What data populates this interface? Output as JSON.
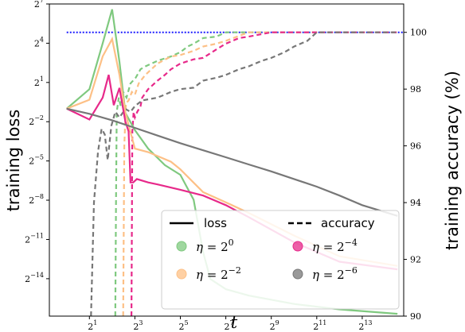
{
  "chart_data": {
    "type": "line",
    "xlabel": "t",
    "ylabel": "training loss",
    "y2label": "training accuracy (%)",
    "x_scale": "log2",
    "x_ticks": [
      2,
      8,
      32,
      128,
      512,
      2048,
      8192
    ],
    "x_tick_labels": [
      {
        "base": "2",
        "exp": "1"
      },
      {
        "base": "2",
        "exp": "3"
      },
      {
        "base": "2",
        "exp": "5"
      },
      {
        "base": "2",
        "exp": "7"
      },
      {
        "base": "2",
        "exp": "9"
      },
      {
        "base": "2",
        "exp": "11"
      },
      {
        "base": "2",
        "exp": "13"
      }
    ],
    "xlim": [
      0.59,
      29000
    ],
    "y_scale": "log2",
    "y_ticks": [
      6.1e-05,
      0.000488,
      0.00391,
      0.03125,
      0.25,
      2,
      16,
      128
    ],
    "y_tick_labels": [
      {
        "base": "2",
        "exp": "−14"
      },
      {
        "base": "2",
        "exp": "−11"
      },
      {
        "base": "2",
        "exp": "−8"
      },
      {
        "base": "2",
        "exp": "−5"
      },
      {
        "base": "2",
        "exp": "−2"
      },
      {
        "base": "2",
        "exp": "1"
      },
      {
        "base": "2",
        "exp": "4"
      },
      {
        "base": "2",
        "exp": "7"
      }
    ],
    "ylim": [
      8.4e-06,
      128
    ],
    "y2_ticks": [
      90,
      92,
      94,
      96,
      98,
      100
    ],
    "y2_tick_labels": [
      "90",
      "92",
      "94",
      "96",
      "98",
      "100"
    ],
    "y2lim": [
      90,
      101.0
    ],
    "reference_line": {
      "axis": "y2",
      "value": 100,
      "color": "#1a1aff",
      "style": "dotted"
    },
    "legend": {
      "placement": "lower-right",
      "style_entries": [
        {
          "label": "loss",
          "dash": "solid"
        },
        {
          "label": "accuracy",
          "dash": "dashed"
        }
      ],
      "series_entries": [
        {
          "symbol": "η",
          "eq": "= 2",
          "exp": "0"
        },
        {
          "symbol": "η",
          "eq": "= 2",
          "exp": "−4"
        },
        {
          "symbol": "η",
          "eq": "= 2",
          "exp": "−2"
        },
        {
          "symbol": "η",
          "eq": "= 2",
          "exp": "−6"
        }
      ]
    },
    "series": [
      {
        "name": "η = 2^0",
        "color": "#7fc97f",
        "loss": {
          "x": [
            1,
            2,
            3,
            4,
            5,
            6,
            8,
            12,
            20,
            32,
            48,
            64,
            80,
            128,
            256,
            1024,
            4096,
            24000
          ],
          "y": [
            0.5,
            1.4,
            16,
            96,
            6,
            0.4,
            0.16,
            0.06,
            0.025,
            0.015,
            0.004,
            0.00025,
            6e-05,
            3.5e-05,
            2.5e-05,
            1.6e-05,
            1.2e-05,
            9.5e-06
          ]
        },
        "accuracy": {
          "x": [
            4.4,
            4.5,
            4.6,
            4.9,
            5.2,
            5.6,
            6.2,
            7,
            8.2,
            9.5,
            11,
            16,
            24,
            32,
            40,
            48,
            64,
            96,
            128,
            256,
            1024,
            24000
          ],
          "y": [
            90,
            94,
            97.2,
            97.7,
            97.4,
            97.9,
            97.7,
            98.2,
            98.4,
            98.7,
            98.8,
            99.0,
            99.15,
            99.3,
            99.5,
            99.6,
            99.8,
            99.85,
            100,
            100,
            100,
            100
          ]
        }
      },
      {
        "name": "η = 2^−2",
        "color": "#fdc086",
        "loss": {
          "x": [
            1,
            2,
            3,
            4,
            5,
            6,
            8,
            12,
            24,
            32,
            64,
            128,
            256,
            1024,
            4096,
            24000
          ],
          "y": [
            0.5,
            0.8,
            8,
            20,
            3,
            0.4,
            0.06,
            0.05,
            0.03,
            0.02,
            0.006,
            0.0035,
            0.002,
            0.0006,
            0.0002,
            0.00012
          ]
        },
        "accuracy": {
          "x": [
            5.6,
            5.8,
            6.1,
            6.6,
            7.3,
            8,
            9,
            11,
            16,
            24,
            32,
            48,
            64,
            96,
            128,
            256,
            1024,
            24000
          ],
          "y": [
            90,
            96,
            97.5,
            97.6,
            97.9,
            97.8,
            98.2,
            98.5,
            98.9,
            99.15,
            99.2,
            99.35,
            99.5,
            99.6,
            99.7,
            100,
            100,
            100
          ]
        }
      },
      {
        "name": "η = 2^−4",
        "color": "#e7298a",
        "loss": {
          "x": [
            1,
            2,
            3,
            3.6,
            4.2,
            5,
            6,
            6.6,
            7,
            7.6,
            8.5,
            12,
            16,
            32,
            64,
            128,
            256,
            1024,
            4096,
            24000
          ],
          "y": [
            0.5,
            0.28,
            0.9,
            3,
            0.6,
            1.5,
            0.25,
            0.15,
            0.01,
            0.01,
            0.012,
            0.01,
            0.009,
            0.0068,
            0.005,
            0.003,
            0.0016,
            0.00042,
            0.00015,
            0.0001
          ]
        },
        "accuracy": {
          "x": [
            7.2,
            7.4,
            7.7,
            8,
            8.6,
            9.5,
            10,
            12,
            16,
            20,
            24,
            32,
            48,
            64,
            96,
            128,
            192,
            256,
            512,
            1024,
            24000
          ],
          "y": [
            90,
            96.5,
            97.2,
            97.0,
            97.2,
            97.4,
            97.7,
            98.0,
            98.3,
            98.5,
            98.7,
            98.9,
            99.05,
            99.1,
            99.4,
            99.6,
            99.8,
            99.85,
            100,
            100,
            100
          ]
        }
      },
      {
        "name": "η = 2^−6",
        "color": "#777777",
        "loss": {
          "x": [
            1,
            2,
            4,
            8,
            16,
            32,
            64,
            128,
            256,
            512,
            1024,
            2048,
            4096,
            8192,
            24000
          ],
          "y": [
            0.5,
            0.38,
            0.27,
            0.18,
            0.12,
            0.08,
            0.055,
            0.038,
            0.026,
            0.018,
            0.012,
            0.008,
            0.005,
            0.003,
            0.0017
          ]
        },
        "accuracy": {
          "x": [
            2.1,
            2.3,
            2.6,
            2.9,
            3.2,
            3.5,
            3.9,
            4.4,
            5,
            6,
            7,
            8,
            10,
            16,
            24,
            32,
            48,
            64,
            96,
            128,
            192,
            256,
            384,
            512,
            768,
            1024,
            1536,
            2048,
            24000
          ],
          "y": [
            90,
            94,
            95.8,
            96.6,
            96.4,
            95.5,
            96.7,
            97.2,
            97.0,
            97.3,
            97.2,
            97.4,
            97.6,
            97.7,
            97.9,
            98.0,
            98.05,
            98.3,
            98.4,
            98.5,
            98.7,
            98.8,
            99.0,
            99.1,
            99.3,
            99.5,
            99.7,
            100,
            100
          ]
        }
      }
    ]
  }
}
